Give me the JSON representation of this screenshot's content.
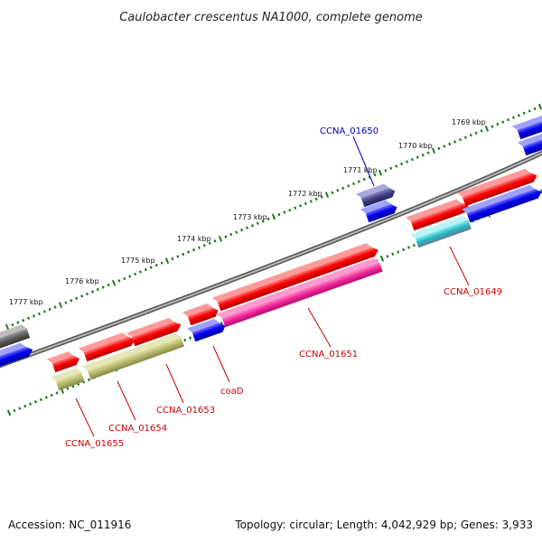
{
  "title": "Caulobacter crescentus NA1000, complete genome",
  "footer": {
    "accession": "Accession: NC_011916",
    "summary": "Topology: circular; Length: 4,042,929 bp; Genes: 3,933"
  },
  "kbp_ticks": [
    "1769 kbp",
    "1770 kbp",
    "1771 kbp",
    "1772 kbp",
    "1773 kbp",
    "1774 kbp",
    "1775 kbp",
    "1776 kbp",
    "1777 kbp"
  ],
  "colors": {
    "backbone": "#888888",
    "tick": "#1e7a1e",
    "cds": "#ee0000",
    "blue": "#0000ee",
    "olive": "#b8b86a",
    "pink": "#ee1e96",
    "slate": "#3c3c82",
    "gray": "#5a5a5a",
    "teal": "#20b8c0",
    "label_red": "#cc0000",
    "label_blue": "#0000bb"
  },
  "gene_labels": [
    {
      "text": "CCNA_01650",
      "color": "blue"
    },
    {
      "text": "CCNA_01649",
      "color": "red"
    },
    {
      "text": "CCNA_01651",
      "color": "red"
    },
    {
      "text": "coaD",
      "color": "red"
    },
    {
      "text": "CCNA_01653",
      "color": "red"
    },
    {
      "text": "CCNA_01654",
      "color": "red"
    },
    {
      "text": "CCNA_01655",
      "color": "red"
    }
  ]
}
